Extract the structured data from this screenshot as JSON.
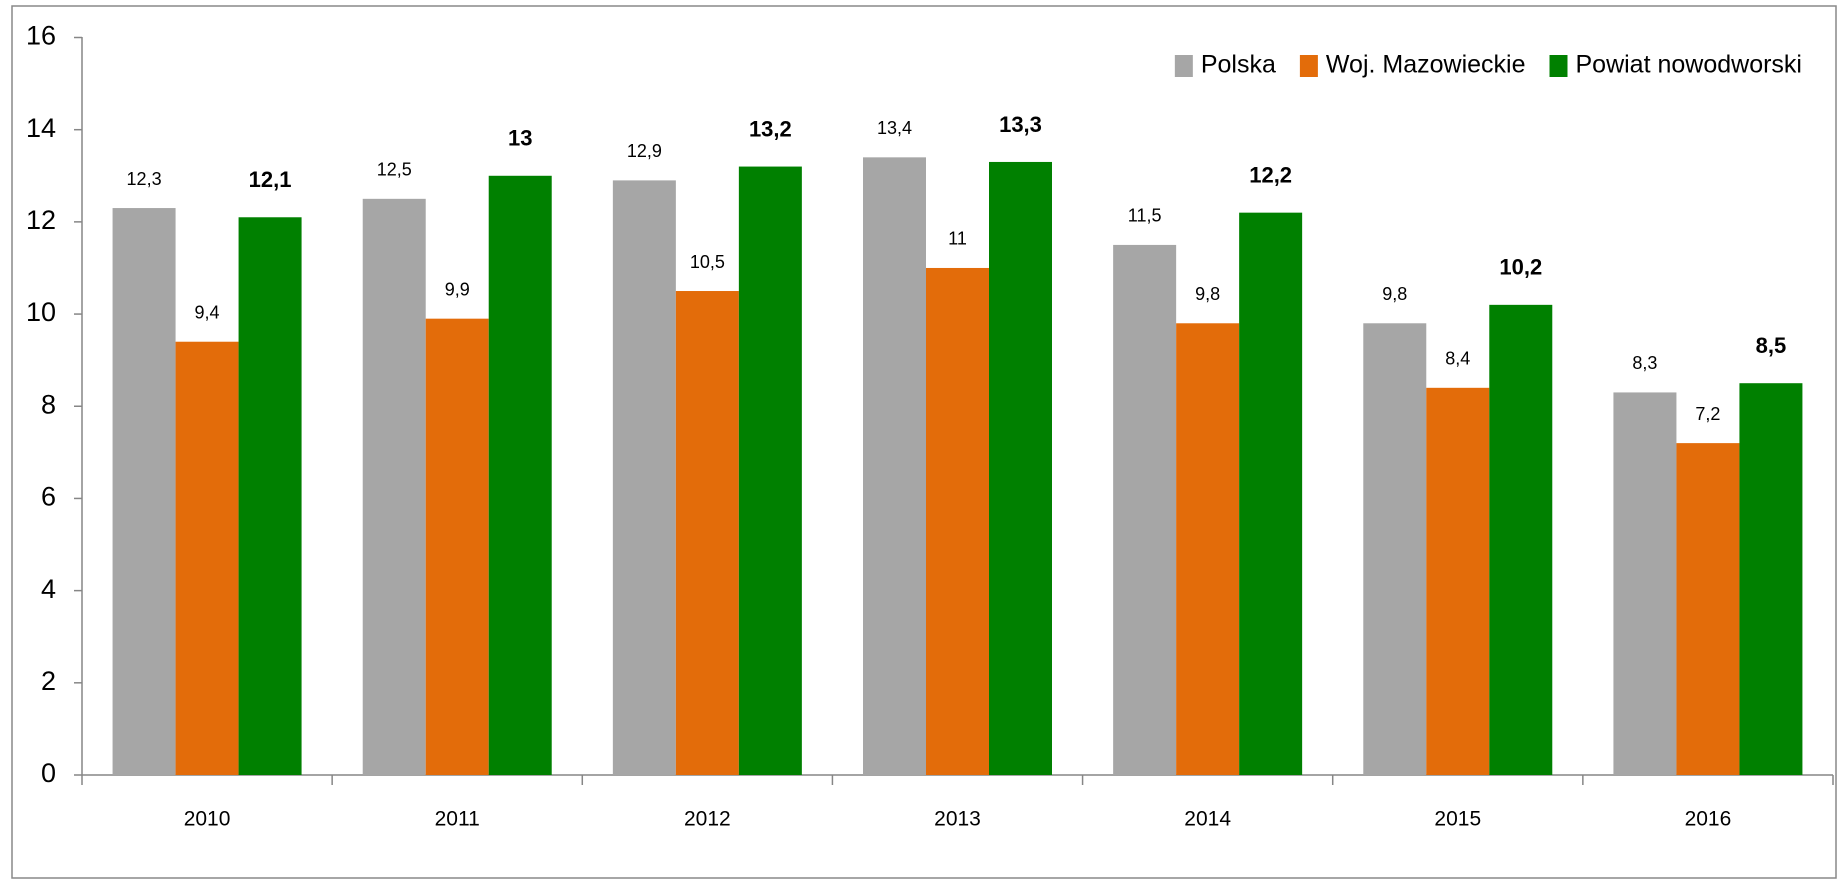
{
  "chart_data": {
    "type": "bar",
    "categories": [
      "2010",
      "2011",
      "2012",
      "2013",
      "2014",
      "2015",
      "2016"
    ],
    "series": [
      {
        "name": "Polska",
        "color": "#a6a6a6",
        "values": [
          12.3,
          12.5,
          12.9,
          13.4,
          11.5,
          9.8,
          8.3
        ],
        "value_labels": [
          "12,3",
          "12,5",
          "12,9",
          "13,4",
          "11,5",
          "9,8",
          "8,3"
        ]
      },
      {
        "name": "Woj. Mazowieckie",
        "color": "#e36c0a",
        "values": [
          9.4,
          9.9,
          10.5,
          11,
          9.8,
          8.4,
          7.2
        ],
        "value_labels": [
          "9,4",
          "9,9",
          "10,5",
          "11",
          "9,8",
          "8,4",
          "7,2"
        ]
      },
      {
        "name": "Powiat nowodworski",
        "color": "#008000",
        "values": [
          12.1,
          13,
          13.2,
          13.3,
          12.2,
          10.2,
          8.5
        ],
        "value_labels": [
          "12,1",
          "13",
          "13,2",
          "13,3",
          "12,2",
          "10,2",
          "8,5"
        ]
      }
    ],
    "ylim": [
      0,
      16
    ],
    "yticks": [
      0,
      2,
      4,
      6,
      8,
      10,
      12,
      14,
      16
    ],
    "grid": false,
    "legend": "upper right"
  }
}
